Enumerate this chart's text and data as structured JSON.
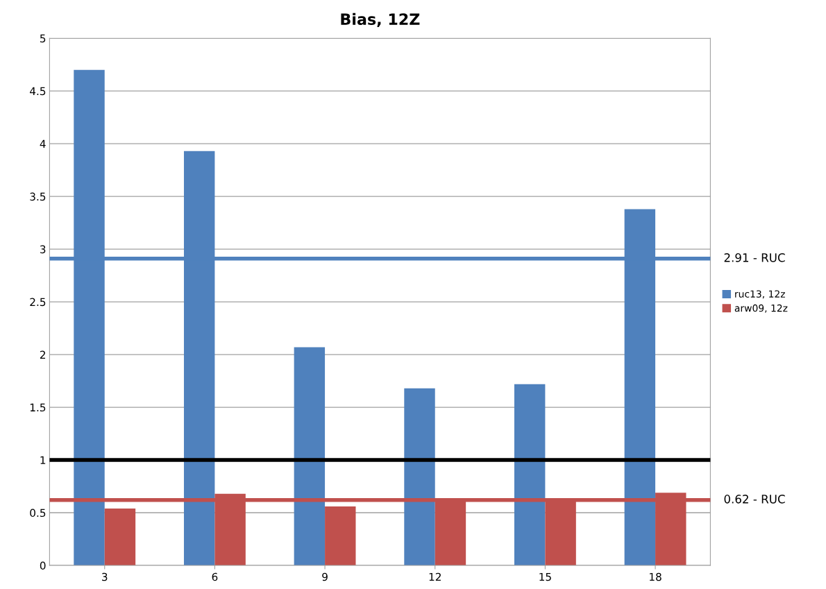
{
  "chart_data": {
    "type": "bar",
    "title": "Bias, 12Z",
    "categories": [
      "3",
      "6",
      "9",
      "12",
      "15",
      "18"
    ],
    "series": [
      {
        "name": "ruc13, 12z",
        "color": "#4f81bd",
        "values": [
          4.7,
          3.93,
          2.07,
          1.68,
          1.72,
          3.38
        ]
      },
      {
        "name": "arw09, 12z",
        "color": "#c0504d",
        "values": [
          0.54,
          0.68,
          0.56,
          0.62,
          0.62,
          0.69
        ]
      }
    ],
    "ylim": [
      0,
      5
    ],
    "yticks": [
      0,
      0.5,
      1,
      1.5,
      2,
      2.5,
      3,
      3.5,
      4,
      4.5,
      5
    ],
    "ref_lines": [
      {
        "axis": "y",
        "value": 2.91,
        "label": "2.91 - RUC",
        "color": "#4f81bd"
      },
      {
        "axis": "y",
        "value": 1,
        "label": null,
        "color": "#000000"
      },
      {
        "axis": "y",
        "value": 0.62,
        "label": "0.62 - RUC",
        "color": "#c0504d"
      }
    ],
    "grid": "y",
    "legend": "right"
  }
}
